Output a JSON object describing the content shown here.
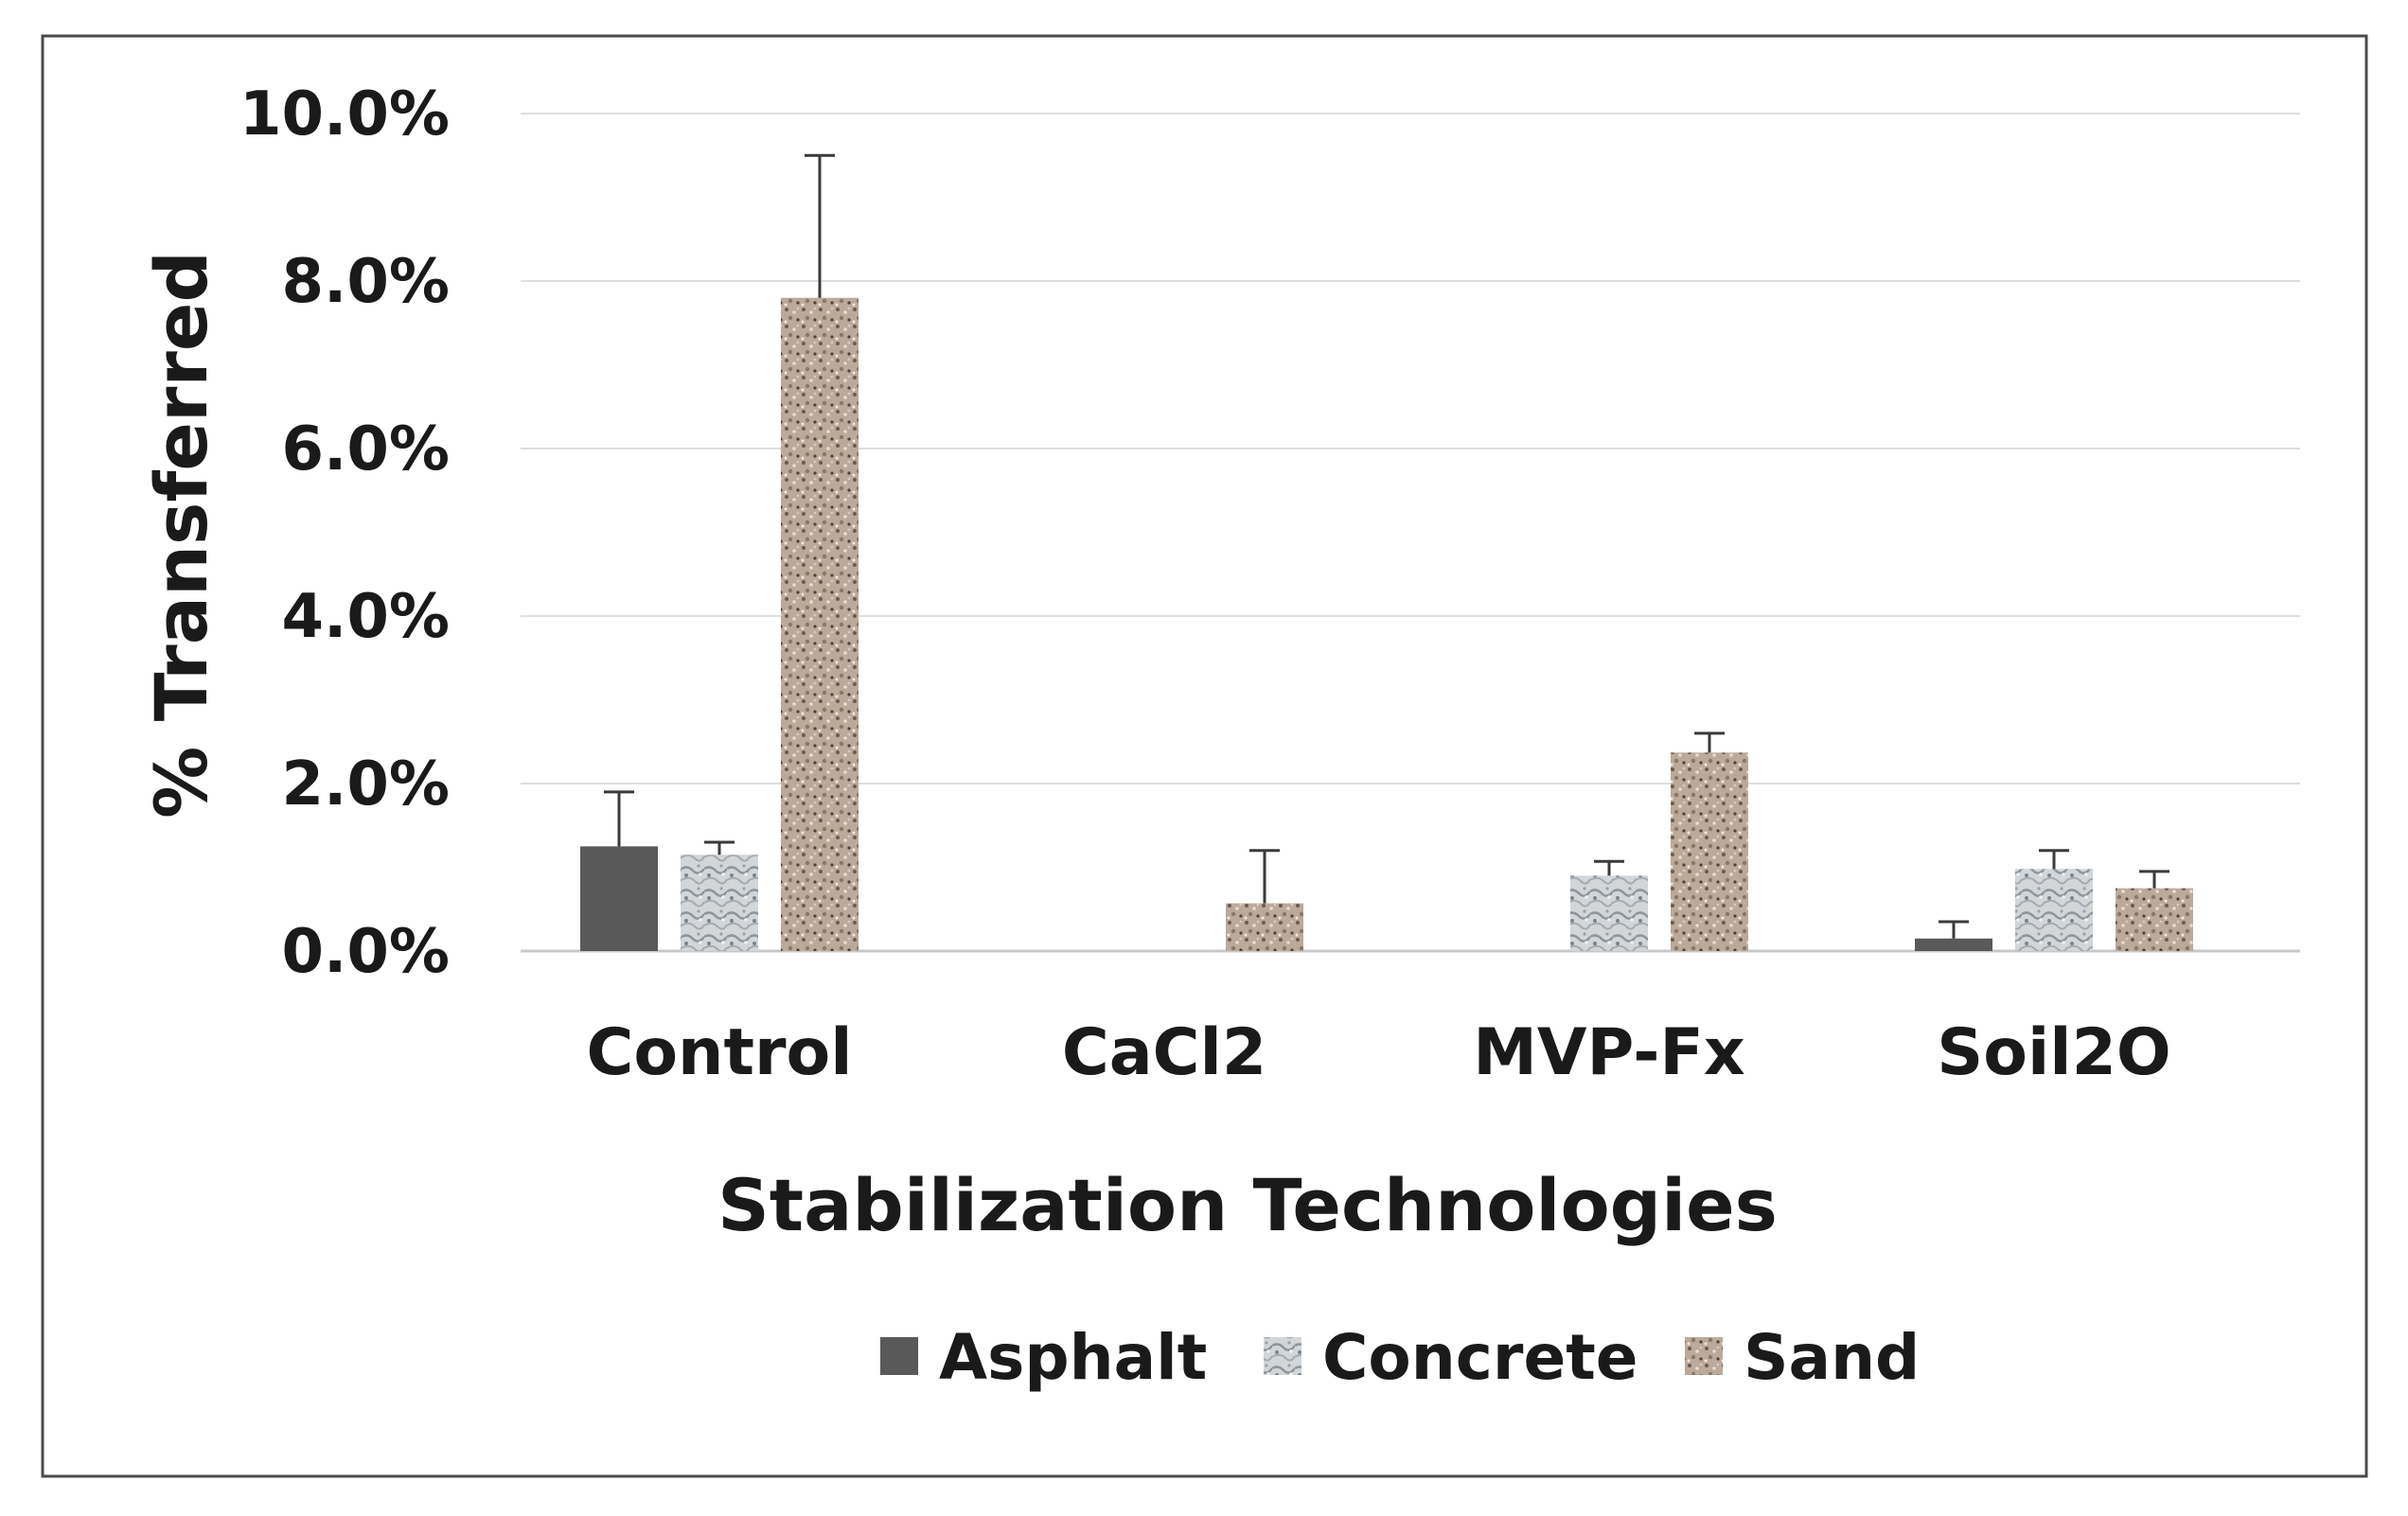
{
  "chart_data": {
    "type": "bar",
    "title": "",
    "xlabel": "Stabilization Technologies",
    "ylabel": "% Transferred",
    "ylim": [
      0,
      10
    ],
    "yticks": [
      "0.0%",
      "2.0%",
      "4.0%",
      "6.0%",
      "8.0%",
      "10.0%"
    ],
    "ytick_values": [
      0,
      2,
      4,
      6,
      8,
      10
    ],
    "grid": true,
    "legend_position": "bottom",
    "categories": [
      "Control",
      "CaCl2",
      "MVP-Fx",
      "Soil2O"
    ],
    "series": [
      {
        "name": "Asphalt",
        "values": [
          1.25,
          0,
          0,
          0.15
        ],
        "errors": [
          0.65,
          0,
          0,
          0.2
        ],
        "color": "#595959",
        "pattern": "solid"
      },
      {
        "name": "Concrete",
        "values": [
          1.15,
          0,
          0.9,
          0.98
        ],
        "errors": [
          0.15,
          0,
          0.17,
          0.22
        ],
        "color": "#c9cdd0",
        "pattern": "marble"
      },
      {
        "name": "Sand",
        "values": [
          7.8,
          0.57,
          2.37,
          0.75
        ],
        "errors": [
          1.7,
          0.63,
          0.23,
          0.2
        ],
        "color": "#b5a596",
        "pattern": "granite"
      }
    ]
  }
}
